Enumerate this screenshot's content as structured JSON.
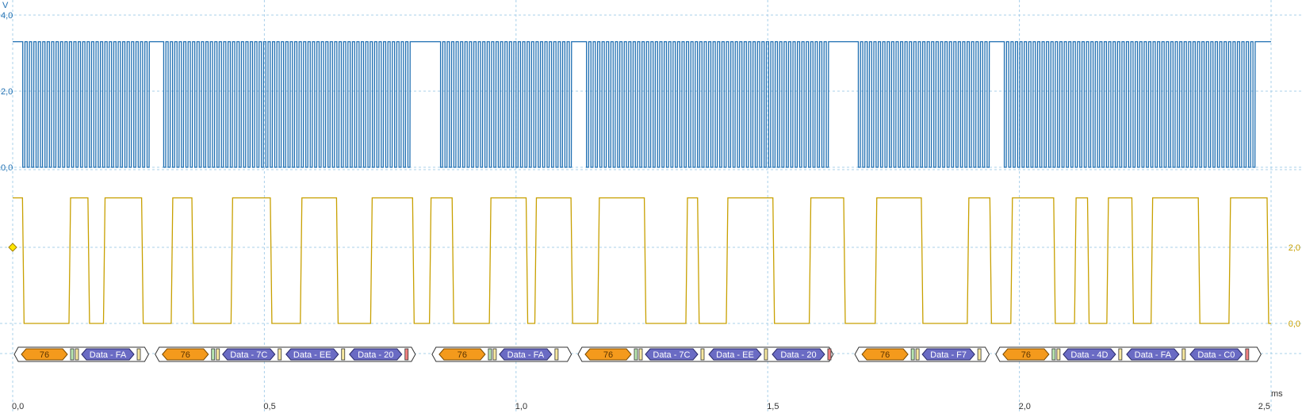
{
  "chart_data": {
    "type": "line",
    "title": "",
    "xlabel": "",
    "x_unit": "ms",
    "xlim": [
      0,
      2.5
    ],
    "x_ticks": [
      "0,0",
      "0,5",
      "1,0",
      "1,5",
      "2,0",
      "2,5"
    ],
    "grid": true,
    "channels": [
      {
        "unit": "V",
        "color": "#1f6fb2",
        "ylim": [
          0,
          4
        ],
        "y_ticks": [
          "4,0",
          "2,0",
          "0,0"
        ],
        "signal": "clock",
        "high": 3.3,
        "low": 0.0,
        "bursts_ms": [
          [
            0.02,
            0.28
          ],
          [
            0.3,
            0.8
          ],
          [
            0.85,
            1.12
          ],
          [
            1.14,
            1.63
          ],
          [
            1.68,
            1.95
          ],
          [
            1.97,
            2.48
          ]
        ]
      },
      {
        "unit": "",
        "color": "#c8a000",
        "ylim": [
          0,
          4
        ],
        "y_ticks": [
          "2,0",
          "0,0"
        ],
        "signal": "data",
        "high": 3.3,
        "low": 0.0,
        "marker_level": 2.0
      }
    ],
    "bus_frames": [
      {
        "start": 0.0,
        "end": 0.27,
        "address": "76",
        "data": [
          "Data - FA"
        ],
        "end_status": "ack"
      },
      {
        "start": 0.28,
        "end": 0.8,
        "address": "76",
        "data": [
          "Data - 7C",
          "Data - EE",
          "Data - 20"
        ],
        "end_status": "nack"
      },
      {
        "start": 0.83,
        "end": 1.11,
        "address": "76",
        "data": [
          "Data - FA"
        ],
        "end_status": "ack"
      },
      {
        "start": 1.12,
        "end": 1.63,
        "address": "76",
        "data": [
          "Data - 7C",
          "Data - EE",
          "Data - 20"
        ],
        "end_status": "nack"
      },
      {
        "start": 1.67,
        "end": 1.94,
        "address": "76",
        "data": [
          "Data - F7"
        ],
        "end_status": "ack"
      },
      {
        "start": 1.95,
        "end": 2.48,
        "address": "76",
        "data": [
          "Data - 4D",
          "Data - FA",
          "Data - C0"
        ],
        "end_status": "nack"
      }
    ]
  },
  "channel_a_unit": "V",
  "x_unit_label": "ms"
}
